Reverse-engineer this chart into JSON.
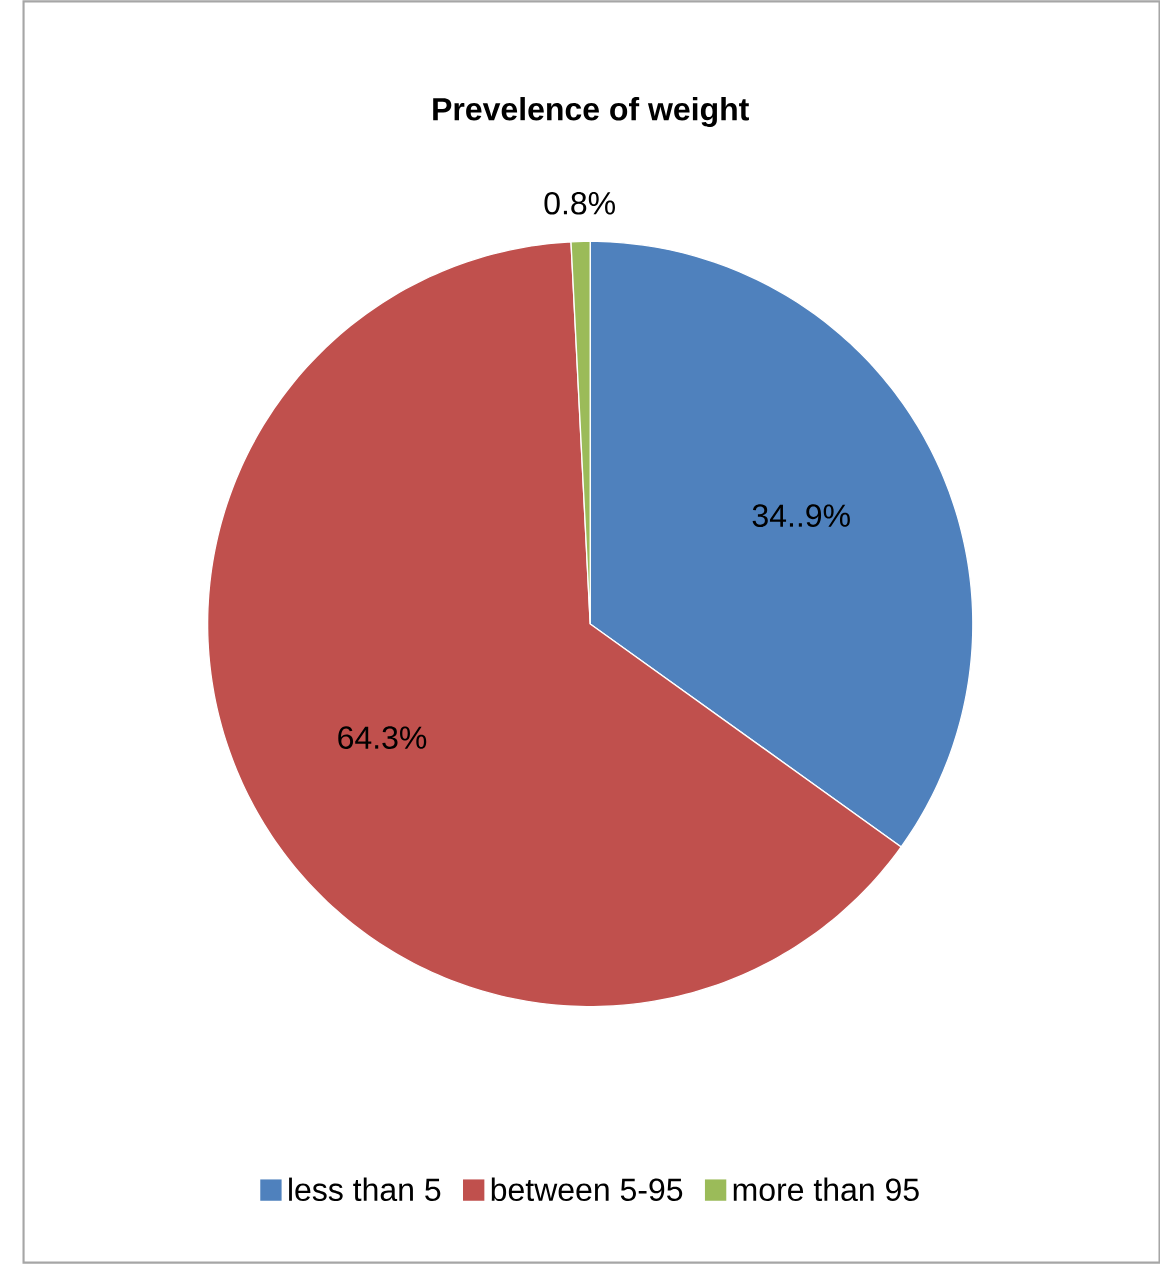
{
  "chart_data": {
    "type": "pie",
    "title": "Prevelence of weight",
    "categories": [
      "less than 5",
      "between 5-95",
      "more than 95"
    ],
    "values": [
      34.9,
      64.3,
      0.8
    ],
    "colors": [
      "#4f81bd",
      "#c0504d",
      "#9bbb59"
    ],
    "value_labels": [
      "34..9%",
      "64.3%",
      "0.8%"
    ],
    "legend": "bottom"
  }
}
